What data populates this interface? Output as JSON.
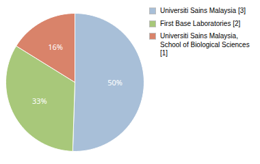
{
  "chart_data": {
    "type": "pie",
    "categories": [
      "Universiti Sains Malaysia [3]",
      "First Base Laboratories [2]",
      "Universiti Sains Malaysia,\nSchool of Biological Sciences [1]"
    ],
    "values": [
      50,
      33,
      16
    ],
    "value_labels": [
      "50%",
      "33%",
      "16%"
    ],
    "colors": [
      "#a8bfd8",
      "#a8c87a",
      "#d9836a"
    ],
    "data_labels": true,
    "legend": "right"
  }
}
